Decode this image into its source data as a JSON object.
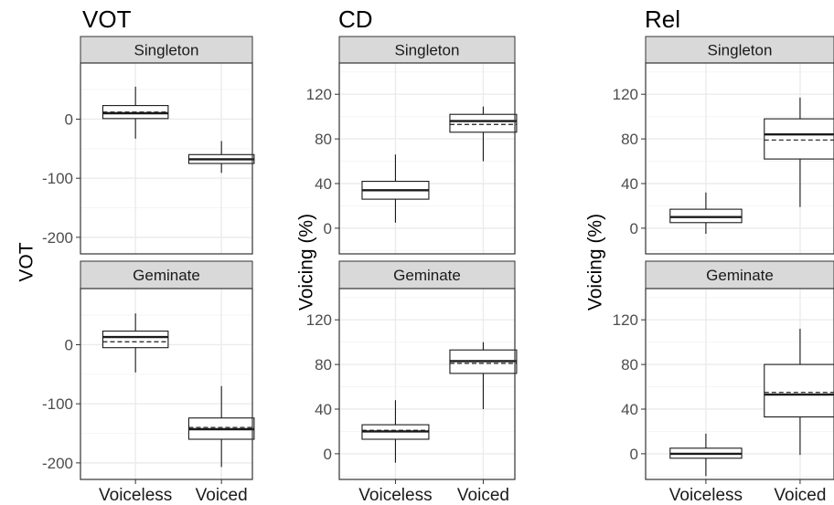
{
  "chart_data": [
    {
      "type": "boxplot",
      "title": "VOT",
      "ylabel": "VOT",
      "xlabel": "",
      "categories": [
        "Voiceless",
        "Voiced"
      ],
      "yticks": [
        0,
        -100,
        -200
      ],
      "ylim": [
        -228,
        95
      ],
      "grid": true,
      "facets": [
        {
          "label": "Singleton",
          "boxes": [
            {
              "category": "Voiceless",
              "whisker_low": -33,
              "q1": 1,
              "median": 10,
              "mean": 12,
              "q3": 23,
              "whisker_high": 55
            },
            {
              "category": "Voiced",
              "whisker_low": -91,
              "q1": -75,
              "median": -68,
              "mean": -68,
              "q3": -60,
              "whisker_high": -37
            }
          ]
        },
        {
          "label": "Geminate",
          "boxes": [
            {
              "category": "Voiceless",
              "whisker_low": -47,
              "q1": -5,
              "median": 13,
              "mean": 5,
              "q3": 23,
              "whisker_high": 53
            },
            {
              "category": "Voiced",
              "whisker_low": -207,
              "q1": -160,
              "median": -143,
              "mean": -140,
              "q3": -124,
              "whisker_high": -70
            }
          ]
        }
      ]
    },
    {
      "type": "boxplot",
      "title": "CD",
      "ylabel": "Voicing (%)",
      "xlabel": "",
      "categories": [
        "Voiceless",
        "Voiced"
      ],
      "yticks": [
        0,
        40,
        80,
        120
      ],
      "ylim": [
        -23,
        148
      ],
      "grid": true,
      "facets": [
        {
          "label": "Singleton",
          "boxes": [
            {
              "category": "Voiceless",
              "whisker_low": 5,
              "q1": 26,
              "median": 34,
              "mean": 34,
              "q3": 42,
              "whisker_high": 66
            },
            {
              "category": "Voiced",
              "whisker_low": 60,
              "q1": 86,
              "median": 96,
              "mean": 93,
              "q3": 102,
              "whisker_high": 109
            }
          ]
        },
        {
          "label": "Geminate",
          "boxes": [
            {
              "category": "Voiceless",
              "whisker_low": -8,
              "q1": 13,
              "median": 20,
              "mean": 21,
              "q3": 26,
              "whisker_high": 48
            },
            {
              "category": "Voiced",
              "whisker_low": 40,
              "q1": 72,
              "median": 83,
              "mean": 81,
              "q3": 93,
              "whisker_high": 100
            }
          ]
        }
      ]
    },
    {
      "type": "boxplot",
      "title": "Rel",
      "ylabel": "Voicing (%)",
      "xlabel": "",
      "categories": [
        "Voiceless",
        "Voiced"
      ],
      "yticks": [
        0,
        40,
        80,
        120
      ],
      "ylim": [
        -23,
        148
      ],
      "grid": true,
      "facets": [
        {
          "label": "Singleton",
          "boxes": [
            {
              "category": "Voiceless",
              "whisker_low": -5,
              "q1": 5,
              "median": 10,
              "mean": 10,
              "q3": 17,
              "whisker_high": 32
            },
            {
              "category": "Voiced",
              "whisker_low": 19,
              "q1": 62,
              "median": 84,
              "mean": 79,
              "q3": 98,
              "whisker_high": 117
            }
          ]
        },
        {
          "label": "Geminate",
          "boxes": [
            {
              "category": "Voiceless",
              "whisker_low": -20,
              "q1": -4,
              "median": 0,
              "mean": 0,
              "q3": 5,
              "whisker_high": 18
            },
            {
              "category": "Voiced",
              "whisker_low": -1,
              "q1": 33,
              "median": 53,
              "mean": 55,
              "q3": 80,
              "whisker_high": 112
            }
          ]
        }
      ]
    }
  ],
  "colors": {
    "strip_fill": "#d9d9d9",
    "strip_border": "#333333",
    "panel_border": "#333333",
    "grid_major": "#ebebeb",
    "grid_minor": "#f5f5f5",
    "box_line": "#1a1a1a",
    "tick_text": "#4d4d4d",
    "title_text": "#000000"
  }
}
